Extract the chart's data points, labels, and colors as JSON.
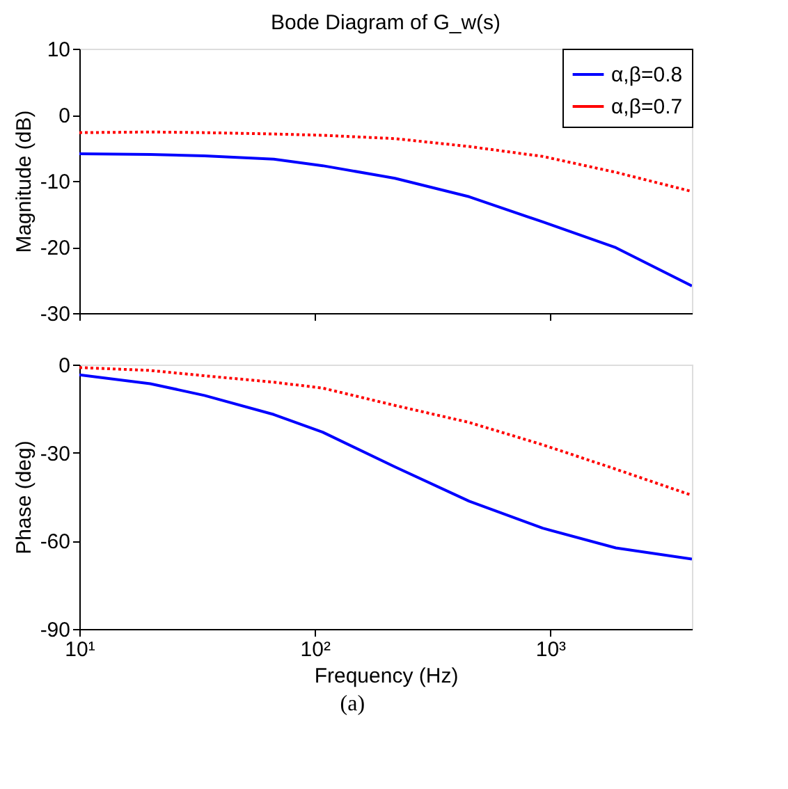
{
  "chart_data": [
    {
      "type": "line",
      "title": "Bode Diagram of G_w(s)",
      "ylabel": "Magnitude (dB)",
      "x": [
        10,
        20,
        34,
        67,
        108,
        219,
        453,
        930,
        1900,
        4000
      ],
      "series": [
        {
          "name": "α,β=0.8",
          "color": "#0000ff",
          "line_style": "solid",
          "values": [
            -5.9,
            -6.0,
            -6.2,
            -6.7,
            -7.7,
            -9.6,
            -12.4,
            -16.2,
            -20.1,
            -25.9
          ]
        },
        {
          "name": "α,β=0.7",
          "color": "#ff0000",
          "line_style": "dotted",
          "values": [
            -2.7,
            -2.6,
            -2.7,
            -2.9,
            -3.1,
            -3.6,
            -4.8,
            -6.3,
            -8.7,
            -11.6
          ]
        }
      ],
      "log": "x",
      "xlim": [
        10,
        4000
      ],
      "xticks": [
        {
          "value": 10,
          "label": null
        },
        {
          "value": 100,
          "label": null
        },
        {
          "value": 1000,
          "label": null
        }
      ],
      "ylim": [
        -30,
        10
      ],
      "yticks": [
        -30,
        -20,
        -10,
        0,
        10
      ],
      "tick_labels": "y",
      "legend": "top right",
      "grid": false
    },
    {
      "type": "line",
      "xlabel": "Frequency (Hz)",
      "ylabel": "Phase (deg)",
      "x": [
        10,
        20,
        34,
        67,
        108,
        219,
        453,
        930,
        1900,
        4000
      ],
      "series": [
        {
          "color": "#0000ff",
          "line_style": "solid",
          "values": [
            -3.5,
            -6.5,
            -10.5,
            -17,
            -23,
            -34.8,
            -46.5,
            -55.7,
            -62.4,
            -66.2
          ]
        },
        {
          "color": "#ff0000",
          "line_style": "dotted",
          "values": [
            -1,
            -2,
            -3.8,
            -6,
            -8,
            -13.9,
            -19.7,
            -27.3,
            -35.6,
            -44.5
          ]
        }
      ],
      "log": "x",
      "xlim": [
        10,
        4000
      ],
      "xticks": [
        {
          "value": 10,
          "label": "10¹"
        },
        {
          "value": 100,
          "label": "10²"
        },
        {
          "value": 1000,
          "label": "10³"
        }
      ],
      "ylim": [
        -90,
        0
      ],
      "yticks": [
        -90,
        -60,
        -30,
        0
      ],
      "grid": false,
      "annotations": [
        "(a)"
      ]
    }
  ]
}
